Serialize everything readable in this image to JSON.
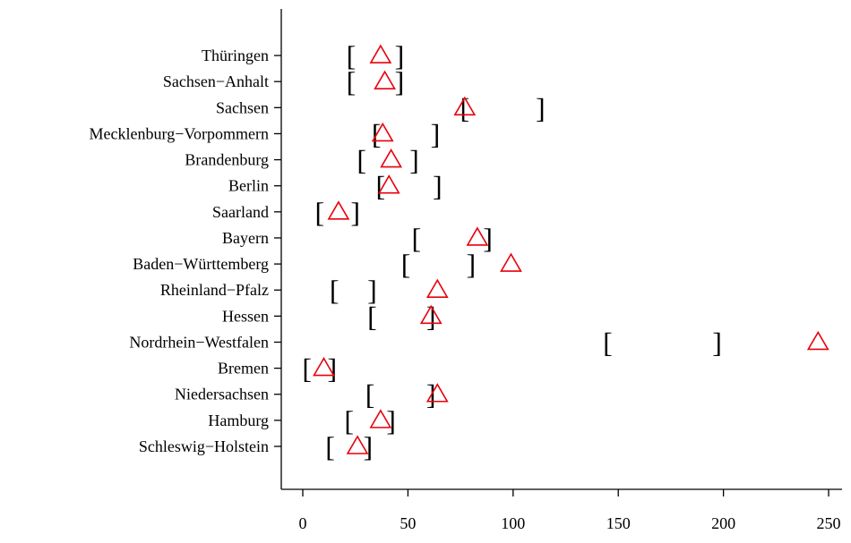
{
  "chart_data": {
    "type": "scatter",
    "title": "",
    "xlabel": "",
    "ylabel": "",
    "xlim": [
      -10,
      255
    ],
    "x_ticks": [
      0,
      50,
      100,
      150,
      200,
      250
    ],
    "categories": [
      "Schleswig−Holstein",
      "Hamburg",
      "Niedersachsen",
      "Bremen",
      "Nordrhein−Westfalen",
      "Hessen",
      "Rheinland−Pfalz",
      "Baden−Württemberg",
      "Bayern",
      "Saarland",
      "Berlin",
      "Brandenburg",
      "Mecklenburg−Vorpommern",
      "Sachsen",
      "Sachsen−Anhalt",
      "Thüringen"
    ],
    "series": [
      {
        "marker": "interval-bracket",
        "color": "#000000",
        "lower": [
          13,
          22,
          32,
          2,
          145,
          33,
          15,
          49,
          54,
          8,
          37,
          28,
          35,
          77,
          23,
          23
        ],
        "upper": [
          31,
          42,
          61,
          14,
          197,
          61,
          33,
          80,
          88,
          25,
          64,
          53,
          63,
          113,
          46,
          46
        ]
      },
      {
        "marker": "open-triangle",
        "color": "#e8000b",
        "values": [
          26,
          37,
          64,
          10,
          245,
          61,
          64,
          99,
          83,
          17,
          41,
          42,
          38,
          77,
          39,
          37
        ]
      }
    ]
  }
}
